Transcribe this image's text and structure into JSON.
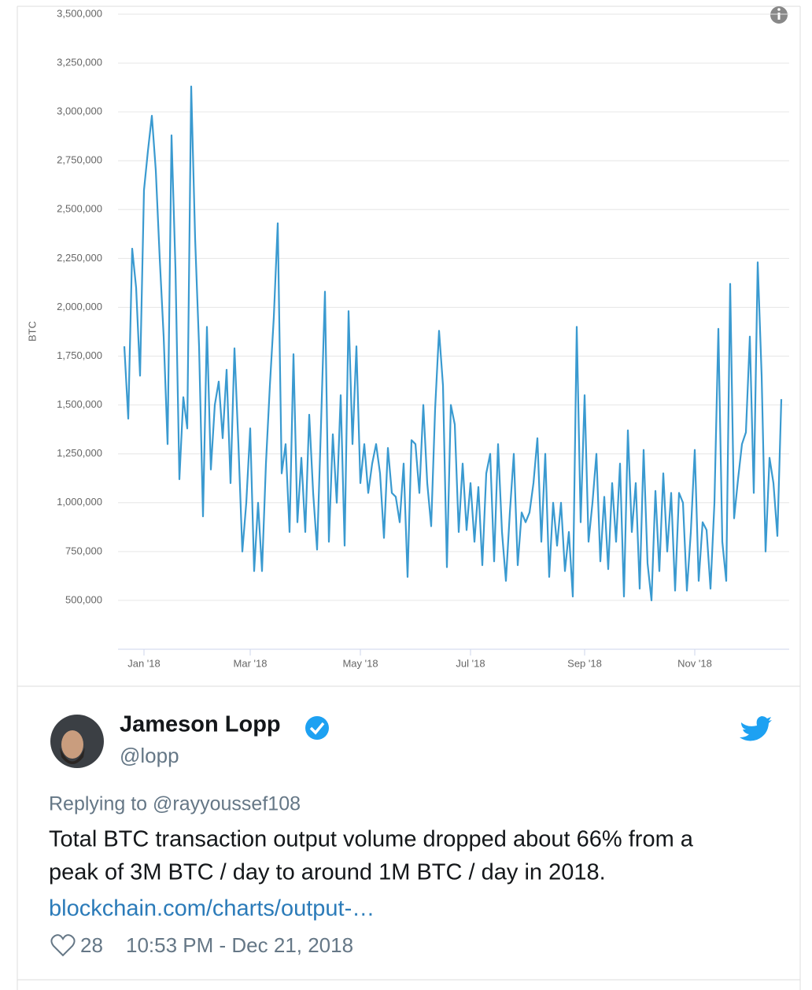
{
  "chart_data": {
    "type": "line",
    "y_label": "BTC",
    "categories": [
      null,
      null,
      null,
      null,
      null,
      "Jan '18",
      null,
      null,
      null,
      null,
      null,
      null,
      null,
      null,
      null,
      null,
      null,
      null,
      null,
      null,
      null,
      null,
      null,
      null,
      null,
      null,
      null,
      null,
      null,
      null,
      null,
      null,
      "Mar '18",
      null,
      null,
      null,
      null,
      null,
      null,
      null,
      null,
      null,
      null,
      null,
      null,
      null,
      null,
      null,
      null,
      null,
      null,
      null,
      null,
      null,
      null,
      null,
      null,
      null,
      null,
      null,
      "May '18",
      null,
      null,
      null,
      null,
      null,
      null,
      null,
      null,
      null,
      null,
      null,
      null,
      null,
      null,
      null,
      null,
      null,
      null,
      null,
      null,
      null,
      null,
      null,
      null,
      null,
      null,
      null,
      "Jul '18",
      null,
      null,
      null,
      null,
      null,
      null,
      null,
      null,
      null,
      null,
      null,
      null,
      null,
      null,
      null,
      null,
      null,
      null,
      null,
      null,
      null,
      null,
      null,
      null,
      null,
      null,
      null,
      null,
      "Sep '18",
      null,
      null,
      null,
      null,
      null,
      null,
      null,
      null,
      null,
      null,
      null,
      null,
      null,
      null,
      null,
      null,
      null,
      null,
      null,
      null,
      null,
      null,
      null,
      null,
      null,
      null,
      null,
      "Nov '18",
      null,
      null,
      null,
      null,
      null,
      null,
      null,
      null,
      null,
      null,
      null,
      null,
      null,
      null,
      null,
      null,
      null,
      null,
      null,
      null,
      null,
      null
    ],
    "series": [
      {
        "name": "BTC",
        "color": "#3a9ad0",
        "values": [
          1800000,
          1430000,
          2300000,
          2100000,
          1650000,
          2600000,
          2800000,
          2980000,
          2700000,
          2250000,
          1850000,
          1300000,
          2880000,
          2200000,
          1120000,
          1540000,
          1380000,
          3130000,
          2350000,
          1800000,
          930000,
          1900000,
          1170000,
          1500000,
          1620000,
          1330000,
          1680000,
          1100000,
          1790000,
          1300000,
          750000,
          1000000,
          1380000,
          650000,
          1000000,
          650000,
          1200000,
          1600000,
          1950000,
          2430000,
          1150000,
          1300000,
          850000,
          1760000,
          900000,
          1230000,
          850000,
          1450000,
          1050000,
          760000,
          1400000,
          2080000,
          800000,
          1350000,
          1000000,
          1550000,
          780000,
          1980000,
          1300000,
          1800000,
          1100000,
          1300000,
          1050000,
          1200000,
          1300000,
          1150000,
          820000,
          1280000,
          1050000,
          1030000,
          900000,
          1200000,
          620000,
          1320000,
          1300000,
          1050000,
          1500000,
          1100000,
          880000,
          1480000,
          1880000,
          1600000,
          670000,
          1500000,
          1400000,
          850000,
          1200000,
          860000,
          1100000,
          800000,
          1080000,
          680000,
          1150000,
          1250000,
          700000,
          1300000,
          850000,
          600000,
          950000,
          1250000,
          680000,
          950000,
          900000,
          950000,
          1100000,
          1330000,
          800000,
          1250000,
          620000,
          1000000,
          780000,
          1000000,
          650000,
          850000,
          520000,
          1900000,
          900000,
          1550000,
          800000,
          1000000,
          1250000,
          700000,
          1030000,
          660000,
          1100000,
          800000,
          1200000,
          520000,
          1370000,
          850000,
          1100000,
          560000,
          1270000,
          690000,
          500000,
          1060000,
          650000,
          1150000,
          750000,
          1050000,
          550000,
          1050000,
          1000000,
          550000,
          850000,
          1270000,
          600000,
          900000,
          860000,
          560000,
          1000000,
          1890000,
          800000,
          600000,
          2120000,
          920000,
          1120000,
          1300000,
          1360000,
          1850000,
          1050000,
          2230000,
          1650000,
          750000,
          1230000,
          1100000,
          830000,
          1530000
        ]
      }
    ],
    "ylim": [
      250000,
      3500000
    ],
    "yticks": [
      {
        "value": 500000,
        "label": "500,000"
      },
      {
        "value": 750000,
        "label": "750,000"
      },
      {
        "value": 1000000,
        "label": "1,000,000"
      },
      {
        "value": 1250000,
        "label": "1,250,000"
      },
      {
        "value": 1500000,
        "label": "1,500,000"
      },
      {
        "value": 1750000,
        "label": "1,750,000"
      },
      {
        "value": 2000000,
        "label": "2,000,000"
      },
      {
        "value": 2250000,
        "label": "2,250,000"
      },
      {
        "value": 2500000,
        "label": "2,500,000"
      },
      {
        "value": 2750000,
        "label": "2,750,000"
      },
      {
        "value": 3000000,
        "label": "3,000,000"
      },
      {
        "value": 3250000,
        "label": "3,250,000"
      },
      {
        "value": 3500000,
        "label": "3,500,000"
      }
    ],
    "grid": true
  },
  "tweet": {
    "name": "Jameson Lopp",
    "handle": "@lopp",
    "replying": "Replying to @rayyoussef108",
    "text_lines": [
      "Total BTC transaction output volume dropped about 66% from a",
      "peak of 3M BTC / day to around 1M BTC / day in 2018."
    ],
    "link": "blockchain.com/charts/output-…",
    "likes": 28,
    "timestamp": "10:53 PM - Dec 21, 2018"
  }
}
